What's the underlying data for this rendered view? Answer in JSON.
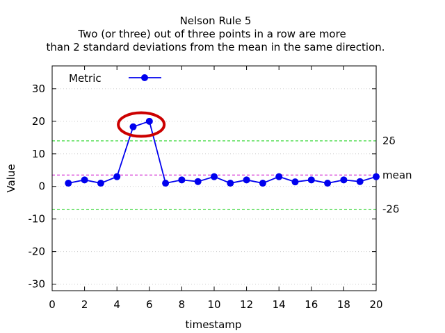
{
  "chart_data": {
    "type": "line",
    "title_lines": [
      "Nelson Rule 5",
      "Two (or three) out of three points in a row are more",
      "than 2 standard deviations from the mean in the same direction."
    ],
    "xlabel": "timestamp",
    "ylabel": "Value",
    "xlim": [
      0,
      20
    ],
    "ylim": [
      -32,
      37
    ],
    "xticks": [
      0,
      2,
      4,
      6,
      8,
      10,
      12,
      14,
      16,
      18,
      20
    ],
    "yticks": [
      -30,
      -20,
      -10,
      0,
      10,
      20,
      30
    ],
    "grid": "horizontal dotted",
    "legend": {
      "placement": "top-left",
      "label": "Metric"
    },
    "series": [
      {
        "name": "Metric",
        "color": "#0000ee",
        "x": [
          1,
          2,
          3,
          4,
          5,
          6,
          7,
          8,
          9,
          10,
          11,
          12,
          13,
          14,
          15,
          16,
          17,
          18,
          19,
          20
        ],
        "y": [
          1,
          2,
          1,
          3,
          18.3,
          20,
          1,
          2,
          1.5,
          3,
          1,
          2,
          1,
          3,
          1.4,
          2,
          1,
          2,
          1.5,
          3
        ]
      }
    ],
    "reference_lines": [
      {
        "label": "2δ",
        "y": 14,
        "color": "#00cc00"
      },
      {
        "label": "mean",
        "y": 3.5,
        "color": "#cc00cc"
      },
      {
        "label": "-2δ",
        "y": -7,
        "color": "#00cc00"
      }
    ],
    "highlight": {
      "shape": "ellipse",
      "color": "#cc0000",
      "x_center": 5.5,
      "y_center": 19
    }
  }
}
